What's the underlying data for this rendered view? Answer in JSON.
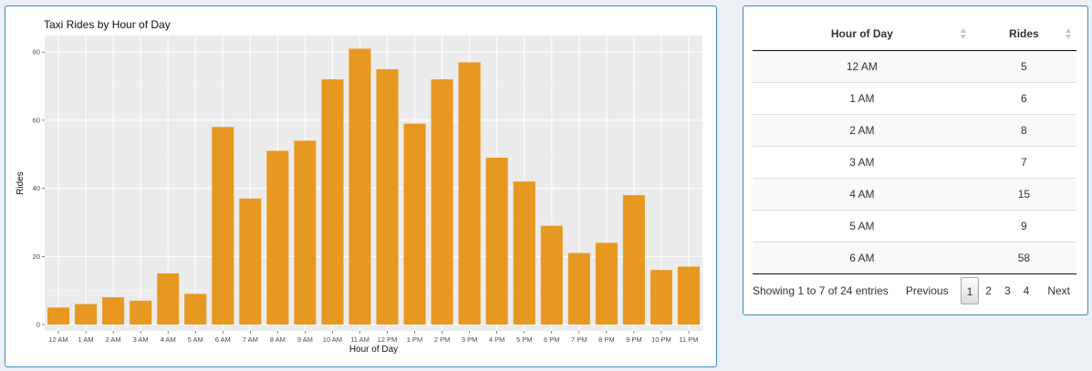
{
  "chart_data": {
    "type": "bar",
    "title": "Taxi Rides by Hour of Day",
    "xlabel": "Hour of Day",
    "ylabel": "Rides",
    "ylim": [
      0,
      83
    ],
    "yticks": [
      "0",
      "20",
      "40",
      "60",
      "80"
    ],
    "categories": [
      "12 AM",
      "1 AM",
      "2 AM",
      "3 AM",
      "4 AM",
      "5 AM",
      "6 AM",
      "7 AM",
      "8 AM",
      "9 AM",
      "10 AM",
      "11 AM",
      "12 PM",
      "1 PM",
      "2 PM",
      "3 PM",
      "4 PM",
      "5 PM",
      "6 PM",
      "7 PM",
      "8 PM",
      "9 PM",
      "10 PM",
      "11 PM"
    ],
    "values": [
      5,
      6,
      8,
      7,
      15,
      9,
      58,
      37,
      51,
      54,
      72,
      81,
      75,
      59,
      72,
      77,
      49,
      42,
      29,
      21,
      24,
      38,
      16,
      17
    ],
    "bar_color": "#E69820",
    "panel_color": "#EBEBEB",
    "grid": true
  },
  "table": {
    "headers": [
      "Hour of Day",
      "Rides"
    ],
    "rows": [
      [
        "12 AM",
        "5"
      ],
      [
        "1 AM",
        "6"
      ],
      [
        "2 AM",
        "8"
      ],
      [
        "3 AM",
        "7"
      ],
      [
        "4 AM",
        "15"
      ],
      [
        "5 AM",
        "9"
      ],
      [
        "6 AM",
        "58"
      ]
    ],
    "info": "Showing 1 to 7 of 24 entries",
    "pagination": {
      "previous": "Previous",
      "pages": [
        "1",
        "2",
        "3",
        "4"
      ],
      "current": "1",
      "next": "Next"
    }
  }
}
